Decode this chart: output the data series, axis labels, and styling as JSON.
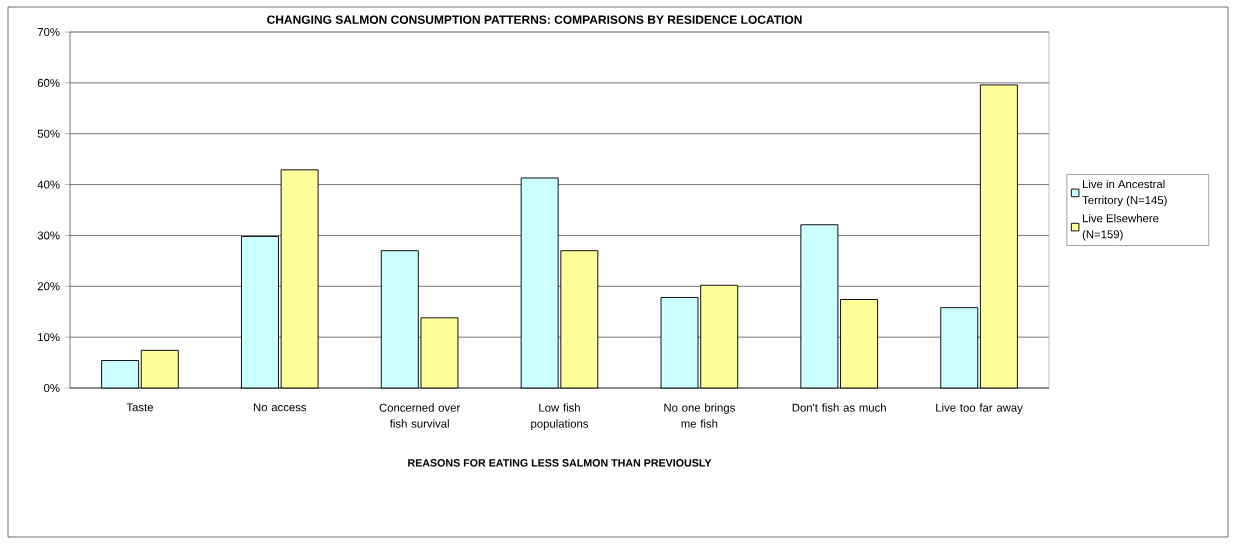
{
  "chart_data": {
    "type": "bar",
    "title": "CHANGING SALMON CONSUMPTION PATTERNS: COMPARISONS BY RESIDENCE LOCATION",
    "xlabel": "REASONS FOR EATING LESS SALMON THAN PREVIOUSLY",
    "categories": [
      "Taste",
      "No access",
      "Concerned over fish survival",
      "Low fish populations",
      "No one brings me fish",
      "Don't fish as much",
      "Live too far away"
    ],
    "series": [
      {
        "name": "Live in Ancestral Territory (N=145)",
        "color": "#ccffff",
        "values": [
          5.4,
          29.8,
          27.0,
          41.3,
          17.8,
          32.1,
          15.8
        ]
      },
      {
        "name": "Live Elsewhere (N=159)",
        "color": "#ffff99",
        "values": [
          7.4,
          42.9,
          13.8,
          27.0,
          20.2,
          17.4,
          59.6
        ]
      }
    ],
    "ylim": [
      0,
      70
    ],
    "yticks": [
      {
        "value": 0,
        "label": "0%"
      },
      {
        "value": 10,
        "label": "10%"
      },
      {
        "value": 20,
        "label": "20%"
      },
      {
        "value": 30,
        "label": "30%"
      },
      {
        "value": 40,
        "label": "40%"
      },
      {
        "value": 50,
        "label": "50%"
      },
      {
        "value": 60,
        "label": "60%"
      },
      {
        "value": 70,
        "label": "70%"
      }
    ],
    "grid": "y",
    "legend": "right"
  }
}
